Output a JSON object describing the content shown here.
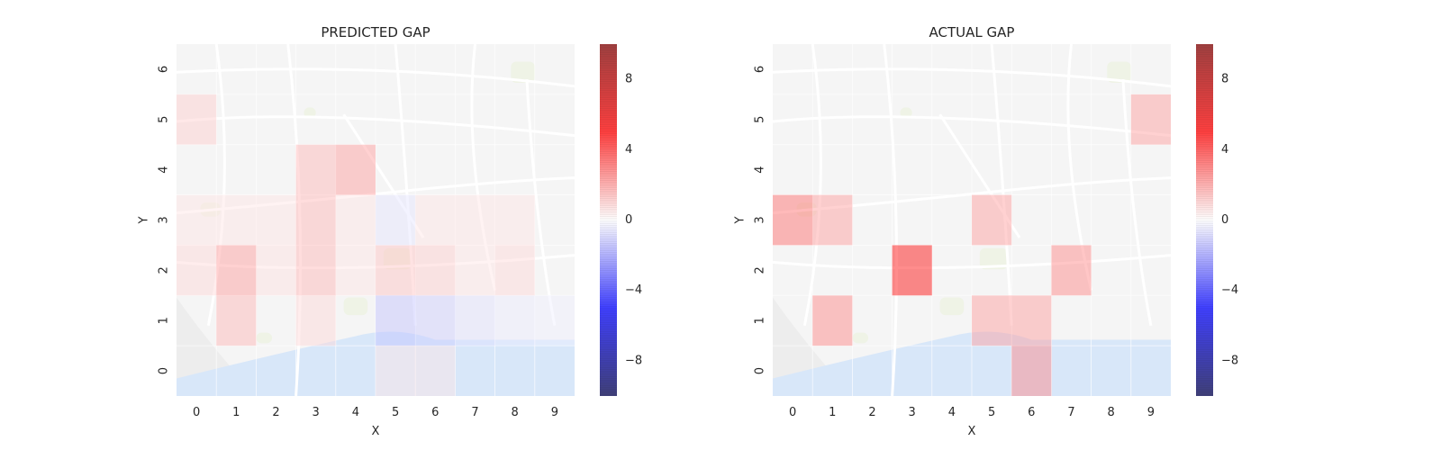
{
  "chart_data": [
    {
      "type": "heatmap",
      "title": "PREDICTED GAP",
      "xlabel": "X",
      "ylabel": "Y",
      "x_ticks": [
        "0",
        "1",
        "2",
        "3",
        "4",
        "5",
        "6",
        "7",
        "8",
        "9"
      ],
      "y_ticks": [
        "0",
        "1",
        "2",
        "3",
        "4",
        "5",
        "6"
      ],
      "colorbar": {
        "range": [
          -10,
          10
        ],
        "ticks": [
          "8",
          "4",
          "0",
          "−4",
          "−8"
        ],
        "tick_values": [
          8,
          4,
          0,
          -4,
          -8
        ],
        "colormap": "seismic"
      },
      "background": "street map of Porto (semi-transparent)",
      "grid": true,
      "cells": [
        {
          "x": 0,
          "y": 5,
          "value": 1.0
        },
        {
          "x": 3,
          "y": 4,
          "value": 1.5
        },
        {
          "x": 4,
          "y": 4,
          "value": 2.0
        },
        {
          "x": 0,
          "y": 3,
          "value": 0.5
        },
        {
          "x": 1,
          "y": 3,
          "value": 0.5
        },
        {
          "x": 2,
          "y": 3,
          "value": 0.5
        },
        {
          "x": 3,
          "y": 3,
          "value": 1.5
        },
        {
          "x": 4,
          "y": 3,
          "value": 0.5
        },
        {
          "x": 5,
          "y": 3,
          "value": -0.5
        },
        {
          "x": 6,
          "y": 3,
          "value": 0.5
        },
        {
          "x": 7,
          "y": 3,
          "value": 0.5
        },
        {
          "x": 8,
          "y": 3,
          "value": 0.5
        },
        {
          "x": 0,
          "y": 2,
          "value": 0.8
        },
        {
          "x": 1,
          "y": 2,
          "value": 2.0
        },
        {
          "x": 2,
          "y": 2,
          "value": 0.6
        },
        {
          "x": 3,
          "y": 2,
          "value": 1.5
        },
        {
          "x": 4,
          "y": 2,
          "value": 0.5
        },
        {
          "x": 5,
          "y": 2,
          "value": 1.2
        },
        {
          "x": 6,
          "y": 2,
          "value": 1.0
        },
        {
          "x": 7,
          "y": 2,
          "value": 0.5
        },
        {
          "x": 8,
          "y": 2,
          "value": 0.8
        },
        {
          "x": 1,
          "y": 1,
          "value": 1.5
        },
        {
          "x": 3,
          "y": 1,
          "value": 0.8
        },
        {
          "x": 5,
          "y": 1,
          "value": -1.2
        },
        {
          "x": 6,
          "y": 1,
          "value": -1.0
        },
        {
          "x": 7,
          "y": 1,
          "value": -0.6
        },
        {
          "x": 8,
          "y": 1,
          "value": -0.4
        },
        {
          "x": 9,
          "y": 1,
          "value": -0.3
        },
        {
          "x": 5,
          "y": 0,
          "value": 0.5
        },
        {
          "x": 6,
          "y": 0,
          "value": 0.5
        }
      ]
    },
    {
      "type": "heatmap",
      "title": "ACTUAL GAP",
      "xlabel": "X",
      "ylabel": "Y",
      "x_ticks": [
        "0",
        "1",
        "2",
        "3",
        "4",
        "5",
        "6",
        "7",
        "8",
        "9"
      ],
      "y_ticks": [
        "0",
        "1",
        "2",
        "3",
        "4",
        "5",
        "6"
      ],
      "colorbar": {
        "range": [
          -10,
          10
        ],
        "ticks": [
          "8",
          "4",
          "0",
          "−4",
          "−8"
        ],
        "tick_values": [
          8,
          4,
          0,
          -4,
          -8
        ],
        "colormap": "seismic"
      },
      "background": "street map of Porto (semi-transparent)",
      "grid": true,
      "cells": [
        {
          "x": 9,
          "y": 5,
          "value": 2.0
        },
        {
          "x": 0,
          "y": 3,
          "value": 3.0
        },
        {
          "x": 1,
          "y": 3,
          "value": 2.0
        },
        {
          "x": 5,
          "y": 3,
          "value": 2.0
        },
        {
          "x": 3,
          "y": 2,
          "value": 5.0
        },
        {
          "x": 7,
          "y": 2,
          "value": 2.5
        },
        {
          "x": 1,
          "y": 1,
          "value": 2.5
        },
        {
          "x": 5,
          "y": 1,
          "value": 2.0
        },
        {
          "x": 6,
          "y": 1,
          "value": 2.0
        },
        {
          "x": 6,
          "y": 0,
          "value": 2.5
        }
      ]
    }
  ],
  "colors": {
    "road": "#ffffff",
    "land": "#ededed",
    "park": "#dfe9c9",
    "water": "#b9d3f5"
  }
}
